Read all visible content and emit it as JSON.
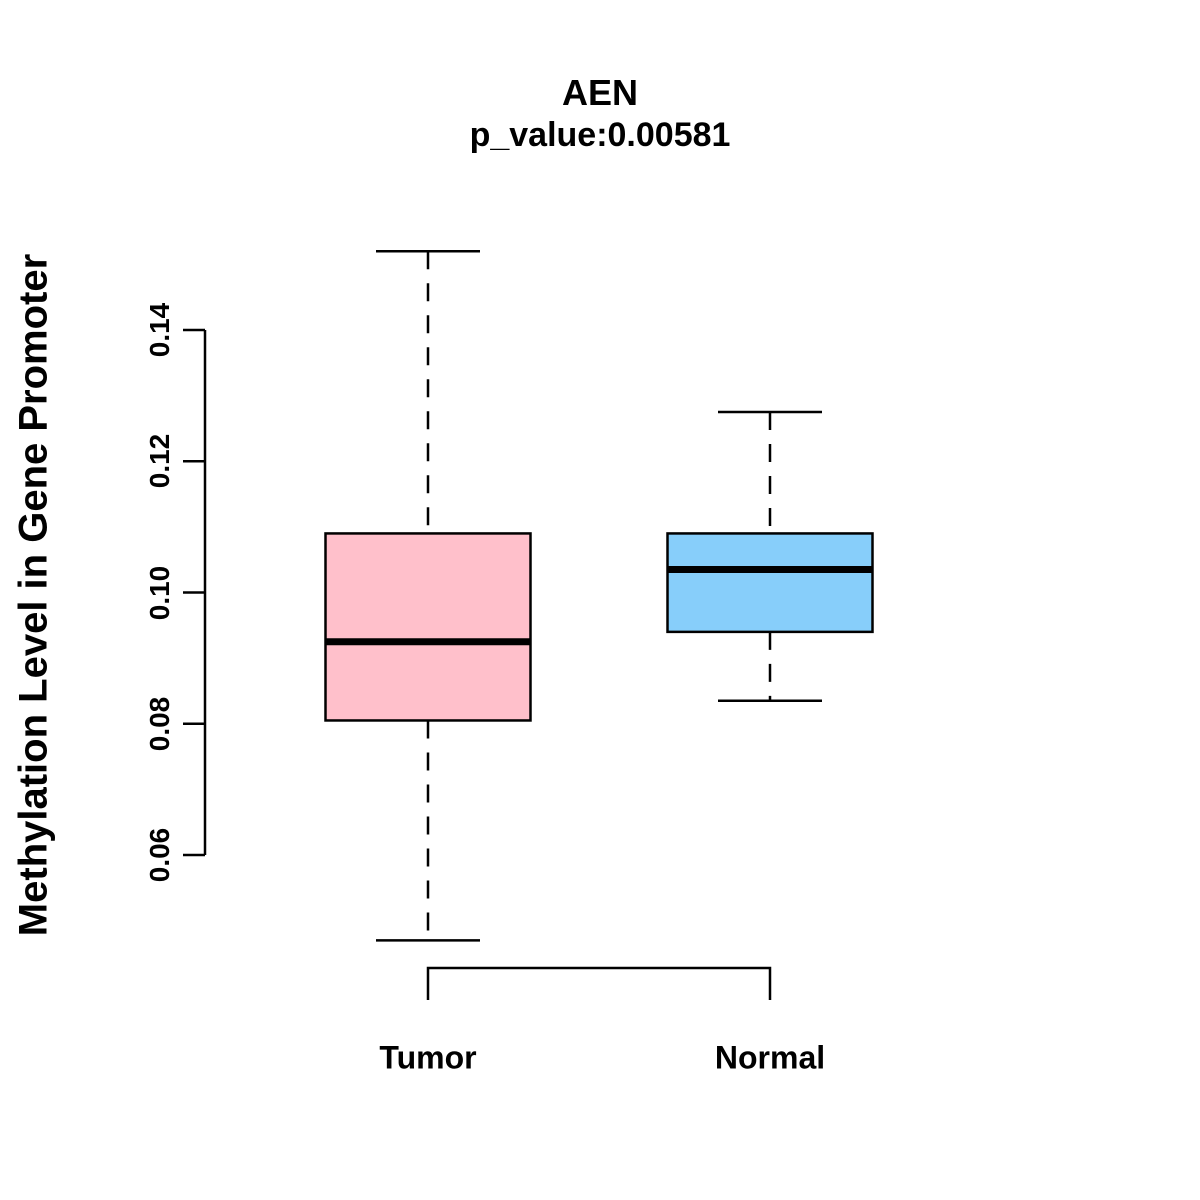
{
  "chart_data": {
    "type": "boxplot",
    "title": "AEN",
    "subtitle": "p_value:0.00581",
    "ylabel": "Methylation Level in Gene Promoter",
    "xlabel": "",
    "ytick_labels": [
      "0.06",
      "0.08",
      "0.10",
      "0.12",
      "0.14"
    ],
    "ytick_values": [
      0.06,
      0.08,
      0.1,
      0.12,
      0.14
    ],
    "ylim": [
      0.045,
      0.155
    ],
    "grid": false,
    "legend": "none",
    "stroke_color": "#000000",
    "groups": [
      {
        "label": "Tumor",
        "fill_color": "#FFC0CB",
        "whisker_low": 0.047,
        "q1": 0.0805,
        "median": 0.0925,
        "q3": 0.109,
        "whisker_high": 0.152
      },
      {
        "label": "Normal",
        "fill_color": "#87CEFA",
        "whisker_low": 0.0835,
        "q1": 0.094,
        "median": 0.1035,
        "q3": 0.109,
        "whisker_high": 0.1275
      }
    ]
  }
}
